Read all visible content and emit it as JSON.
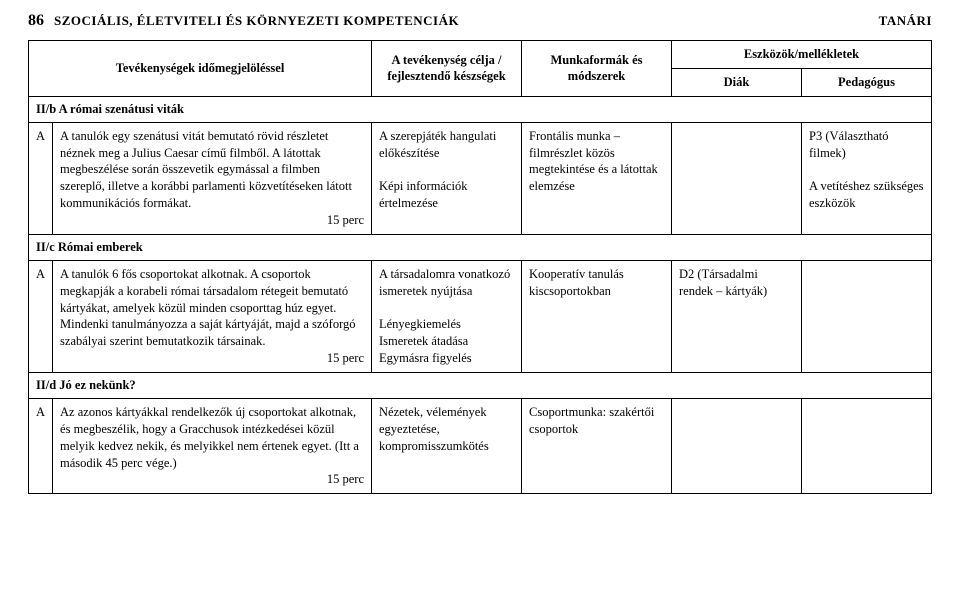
{
  "header": {
    "page_number": "86",
    "title_left": "SZOCIÁLIS, ÉLETVITELI ÉS KÖRNYEZETI KOMPETENCIÁK",
    "title_right": "TANÁRI"
  },
  "table": {
    "head": {
      "c1": "Tevékenységek időmegjelöléssel",
      "c2": "A tevékenység célja / fejlesztendő készségek",
      "c3": "Munkaformák és módszerek",
      "c4_group": "Eszközök/mellékletek",
      "c4a": "Diák",
      "c4b": "Pedagógus"
    },
    "section_b": {
      "title": "II/b A római szenátusi viták",
      "idx": "A",
      "cell1": "A tanulók egy szenátusi vitát bemutató rövid részletet néznek meg a Julius Caesar című filmből. A látottak megbeszélése során összevetik egymással a filmben szereplő, illetve a korábbi parlamenti közvetítéseken látott kommunikációs formákat.",
      "cell1_time": "15 perc",
      "cell2a": "A szerepjáték hangulati előkészítése",
      "cell2b": "Képi információk értelmezése",
      "cell3": "Frontális munka – filmrészlet közös megtekintése és a látottak elemzése",
      "cell4": "",
      "cell5a": "P3 (Választható filmek)",
      "cell5b": "A vetítéshez szükséges eszközök"
    },
    "section_c": {
      "title": "II/c Római emberek",
      "idx": "A",
      "cell1": "A tanulók 6 fős csoportokat alkotnak. A csoportok megkapják a korabeli római társadalom rétegeit bemutató kártyákat, amelyek közül minden csoporttag húz egyet. Mindenki tanulmányozza a saját kártyáját, majd a szóforgó szabályai szerint bemutatkozik társainak.",
      "cell1_time": "15 perc",
      "cell2a": "A társadalomra vonatkozó ismeretek nyújtása",
      "cell2b": "Lényegkiemelés",
      "cell2c": "Ismeretek átadása",
      "cell2d": "Egymásra figyelés",
      "cell3": "Kooperatív tanulás kiscsoportokban",
      "cell4": "D2 (Társadalmi rendek – kártyák)",
      "cell5": ""
    },
    "section_d": {
      "title": "II/d Jó ez nekünk?",
      "idx": "A",
      "cell1": "Az azonos kártyákkal rendelkezők új csoportokat alkotnak, és megbeszélik, hogy a Gracchusok intézkedései közül melyik kedvez nekik, és melyikkel nem értenek egyet. (Itt a második 45 perc vége.)",
      "cell1_time": "15 perc",
      "cell2": "Nézetek, vélemények egyeztetése, kompromisszumkötés",
      "cell3": "Csoportmunka: szakértői csoportok",
      "cell4": "",
      "cell5": ""
    }
  }
}
